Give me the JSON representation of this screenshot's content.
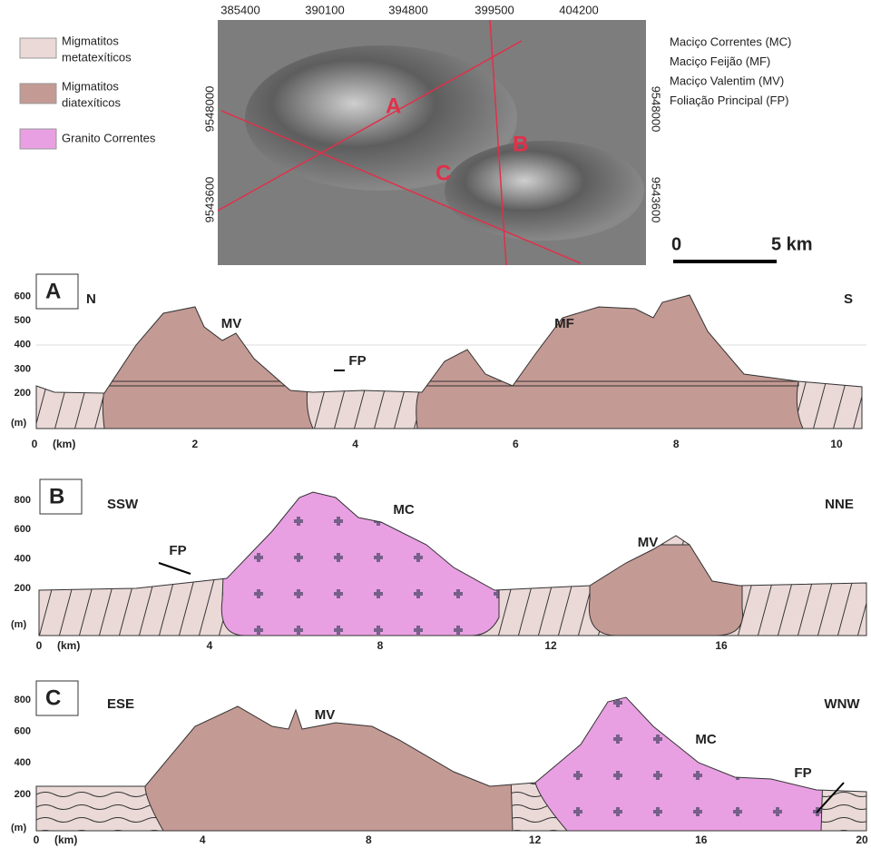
{
  "legend": [
    {
      "lines": [
        "Migmatitos",
        "metatexíticos"
      ]
    },
    {
      "lines": [
        "Migmatitos",
        "diatexíticos"
      ]
    },
    {
      "lines": [
        "Granito Correntes"
      ]
    }
  ],
  "map": {
    "top_ticks": [
      "385400",
      "390100",
      "394800",
      "399500",
      "404200"
    ],
    "left_ticks": [
      "9548000",
      "9543600"
    ],
    "right_ticks": [
      "9548000",
      "9543600"
    ],
    "profile_labels": [
      "A",
      "B",
      "C"
    ],
    "scale": {
      "start": "0",
      "end": "5 km"
    }
  },
  "abbreviations": [
    "Maciço Correntes (MC)",
    "Maciço Feijão (MF)",
    "Maciço Valentim (MV)",
    "Foliação Principal (FP)"
  ],
  "sections": [
    {
      "letter": "A",
      "left_dir": "N",
      "right_dir": "S",
      "y_unit": "(m)",
      "x_unit": "(km)",
      "yticks": [
        200,
        300,
        400,
        500,
        600
      ],
      "xticks": [
        0,
        2,
        4,
        6,
        8,
        10
      ],
      "labels": [
        "MV",
        "FP",
        "MF"
      ]
    },
    {
      "letter": "B",
      "left_dir": "SSW",
      "right_dir": "NNE",
      "y_unit": "(m)",
      "x_unit": "(km)",
      "yticks": [
        200,
        400,
        600,
        800
      ],
      "xticks": [
        0,
        4,
        8,
        12,
        16
      ],
      "labels": [
        "FP",
        "MC",
        "MV"
      ]
    },
    {
      "letter": "C",
      "left_dir": "ESE",
      "right_dir": "WNW",
      "y_unit": "(m)",
      "x_unit": "(km)",
      "yticks": [
        200,
        400,
        600,
        800
      ],
      "xticks": [
        0,
        4,
        8,
        12,
        16,
        20
      ],
      "labels": [
        "MV",
        "MC",
        "FP"
      ]
    }
  ]
}
